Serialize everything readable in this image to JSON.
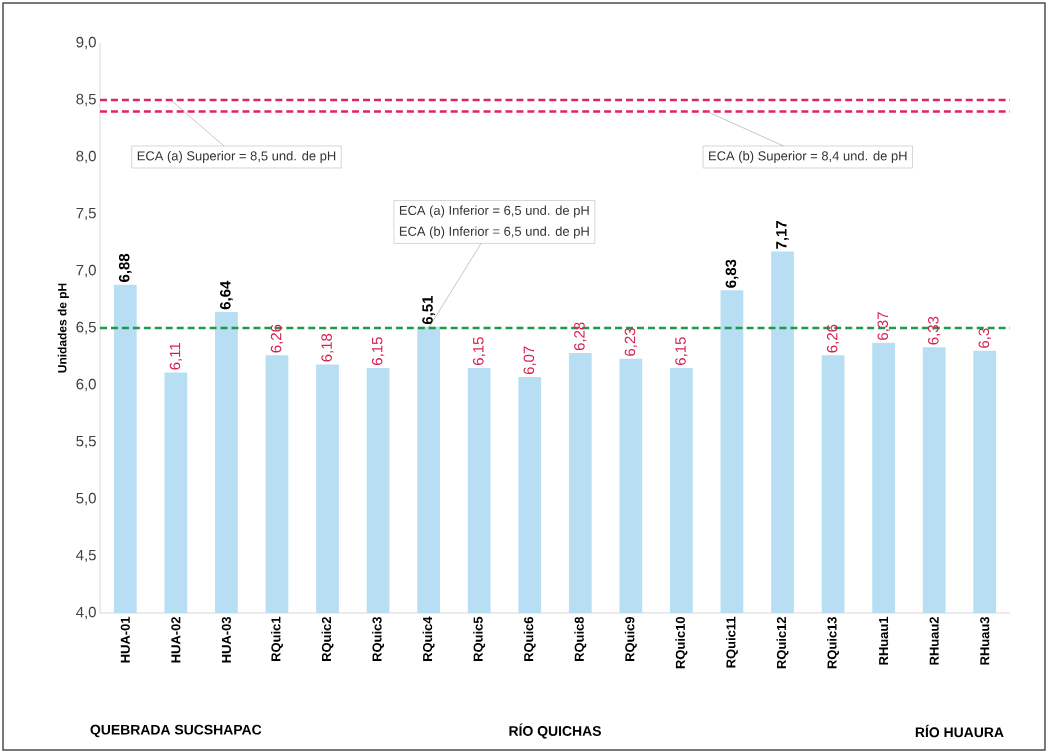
{
  "chart_data": {
    "type": "bar",
    "ylabel": "Unidades de pH",
    "categories": [
      "HUA-01",
      "HUA-02",
      "HUA-03",
      "RQuic1",
      "RQuic2",
      "RQuic3",
      "RQuic4",
      "RQuic5",
      "RQuic6",
      "RQuic8",
      "RQuic9",
      "RQuic10",
      "RQuic11",
      "RQuic12",
      "RQuic13",
      "RHuau1",
      "RHuau2",
      "RHuau3"
    ],
    "values": [
      6.88,
      6.11,
      6.64,
      6.26,
      6.18,
      6.15,
      6.51,
      6.15,
      6.07,
      6.28,
      6.23,
      6.15,
      6.83,
      7.17,
      6.26,
      6.37,
      6.33,
      6.3
    ],
    "value_labels": [
      "6,88",
      "6,11",
      "6,64",
      "6,26",
      "6,18",
      "6,15",
      "6,51",
      "6,15",
      "6,07",
      "6,28",
      "6,23",
      "6,15",
      "6,83",
      "7,17",
      "6,26",
      "6,37",
      "6,33",
      "6,3"
    ],
    "color": "#b7def3",
    "ylim": [
      4,
      9
    ],
    "yticks": [
      {
        "value": 4,
        "label": "4,0"
      },
      {
        "value": 4.5,
        "label": "4,5"
      },
      {
        "value": 5,
        "label": "5,0"
      },
      {
        "value": 5.5,
        "label": "5,5"
      },
      {
        "value": 6,
        "label": "6,0"
      },
      {
        "value": 6.5,
        "label": "6,5"
      },
      {
        "value": 7,
        "label": "7,0"
      },
      {
        "value": 7.5,
        "label": "7,5"
      },
      {
        "value": 8,
        "label": "8,0"
      },
      {
        "value": 8.5,
        "label": "8,5"
      },
      {
        "value": 9,
        "label": "9,0"
      }
    ],
    "ref_lines": [
      {
        "axis": "y",
        "value": 8.5,
        "label": "ECA (a) Superior = 8,5 und. de pH",
        "color": "#e0245e",
        "line_style": "dashed"
      },
      {
        "axis": "y",
        "value": 8.4,
        "label": "ECA (b) Superior = 8,4 und. de pH",
        "color": "#e0245e",
        "line_style": "dashed"
      },
      {
        "axis": "y",
        "value": 6.5,
        "label": "ECA (a) Inferior = 6,5 und. de pH",
        "color": "#1f9a4a",
        "line_style": "dashed"
      }
    ],
    "annotations": [
      "QUEBRADA SUCSHAPAC",
      "RÍO QUICHAS",
      "RÍO HUAURA",
      {
        "text": "ECA (b) Inferior = 6,5 und. de pH",
        "x": "RQuic4",
        "y": 6.5
      }
    ],
    "grid": false
  }
}
